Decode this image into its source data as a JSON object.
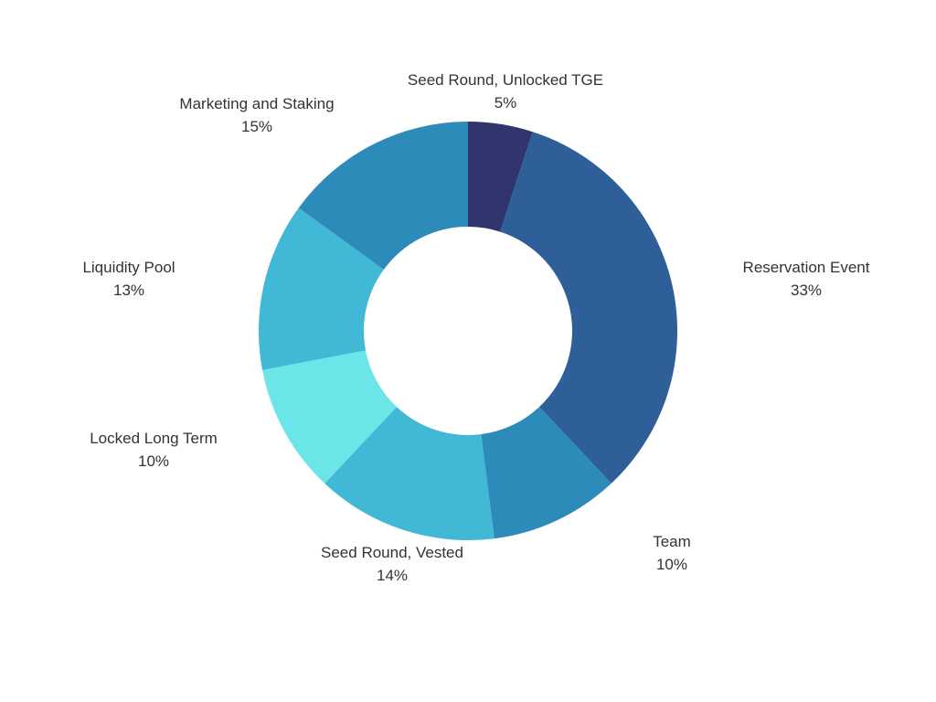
{
  "chart_data": {
    "type": "pie",
    "variant": "donut",
    "title": "",
    "legend": "none",
    "labels_shown": "name and percent outside slices",
    "slices": [
      {
        "name": "Seed Round, Unlocked TGE",
        "value": 5,
        "display": "5%",
        "color": "#31356E"
      },
      {
        "name": "Reservation Event",
        "value": 33,
        "display": "33%",
        "color": "#2F5F98"
      },
      {
        "name": "Team",
        "value": 10,
        "display": "10%",
        "color": "#2D8BBA"
      },
      {
        "name": "Seed Round, Vested",
        "value": 14,
        "display": "14%",
        "color": "#41B8D5"
      },
      {
        "name": "Locked Long Term",
        "value": 10,
        "display": "10%",
        "color": "#6CE5E8"
      },
      {
        "name": "Liquidity Pool",
        "value": 13,
        "display": "13%",
        "color": "#41B8D5"
      },
      {
        "name": "Marketing and Staking",
        "value": 15,
        "display": "15%",
        "color": "#2D8BBA"
      }
    ]
  }
}
